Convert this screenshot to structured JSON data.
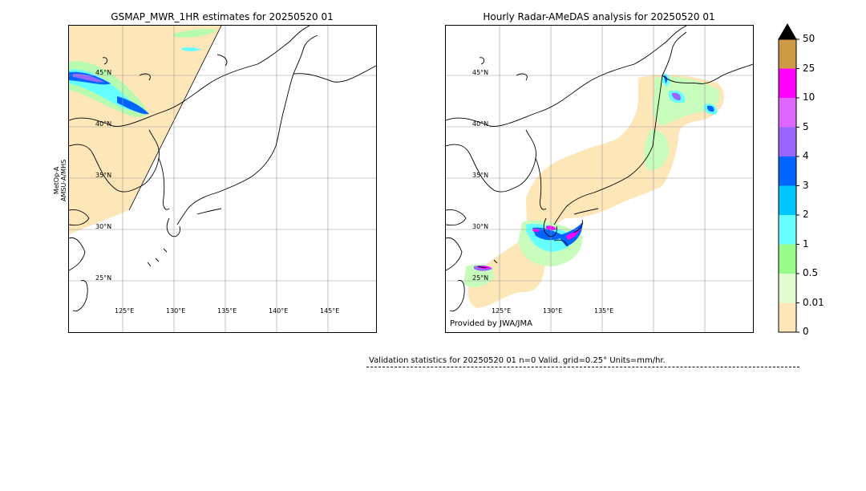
{
  "left_panel": {
    "title": "GSMAP_MWR_1HR estimates for 20250520 01",
    "satellite_label_line1": "MetOp-A",
    "satellite_label_line2": "AMSU-A/MHS",
    "lat_labels": [
      "45°N",
      "40°N",
      "35°N",
      "30°N",
      "25°N"
    ],
    "lon_labels": [
      "125°E",
      "130°E",
      "135°E",
      "140°E",
      "145°E"
    ]
  },
  "right_panel": {
    "title": "Hourly Radar-AMeDAS analysis for 20250520 01",
    "provided_by": "Provided by JWA/JMA",
    "lat_labels": [
      "45°N",
      "40°N",
      "35°N",
      "30°N",
      "25°N"
    ],
    "lon_labels": [
      "125°E",
      "130°E",
      "135°E"
    ]
  },
  "colorbar": {
    "ticks": [
      "50",
      "25",
      "10",
      "5",
      "4",
      "3",
      "2",
      "1",
      "0.5",
      "0.01",
      "0"
    ],
    "colors": [
      "#fde6b8",
      "#e2fcd2",
      "#98fb8a",
      "#65ffff",
      "#00c8ff",
      "#0064ff",
      "#9966ff",
      "#dd66ff",
      "#ff00ff",
      "#cc9944"
    ],
    "extend_color": "#000000"
  },
  "validation": {
    "text": "Validation statistics for 20250520 01  n=0 Valid. grid=0.25° Units=mm/hr."
  }
}
